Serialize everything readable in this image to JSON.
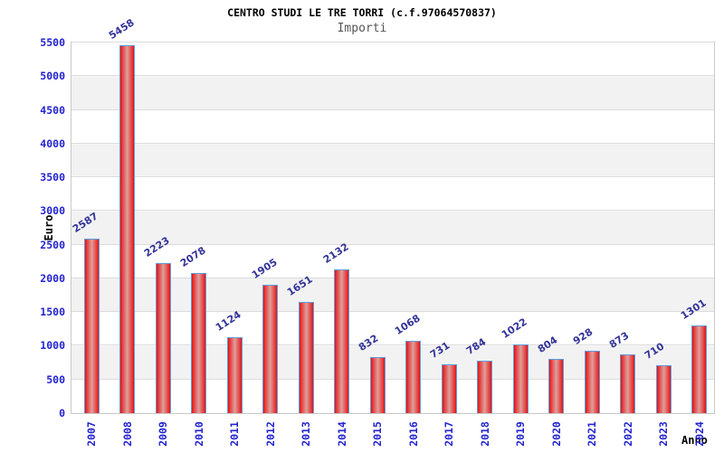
{
  "chart_data": {
    "type": "bar",
    "title": "CENTRO STUDI LE TRE TORRI (c.f.97064570837)",
    "subtitle": "Importi",
    "xlabel": "Anno",
    "ylabel": "Euro",
    "categories": [
      "2007",
      "2008",
      "2009",
      "2010",
      "2011",
      "2012",
      "2013",
      "2014",
      "2015",
      "2016",
      "2017",
      "2018",
      "2019",
      "2020",
      "2021",
      "2022",
      "2023",
      "2024"
    ],
    "values": [
      2587,
      5458,
      2223,
      2078,
      1124,
      1905,
      1651,
      2132,
      832,
      1068,
      731,
      784,
      1022,
      804,
      928,
      873,
      710,
      1301
    ],
    "value_labels": [
      "2587",
      "5458",
      "2223",
      "2078",
      "1124",
      "1905",
      "1651",
      "2132",
      "832",
      "1068",
      "731",
      "784",
      "1022",
      "804",
      "928",
      "873",
      "710",
      "1301"
    ],
    "ylim": [
      0,
      5500
    ],
    "y_ticks": [
      0,
      500,
      1000,
      1500,
      2000,
      2500,
      3000,
      3500,
      4000,
      4500,
      5000,
      5500
    ],
    "grid": "horizontal gridlines every 500 with alternating white/gray bands",
    "legend": "none",
    "colors": {
      "axis_tick_blue": "#2323d0",
      "value_label_navy": "#333399",
      "bar_border": "#5f9ddd",
      "bar_edge_red": "#dd1414",
      "bar_bright_red": "#e83030",
      "bar_center_rose": "#dda09c",
      "band_gray": "#f2f2f2",
      "gridline": "#dcdcdc",
      "plot_border": "#c9c9c9",
      "title_black": "#000000",
      "subtitle_gray": "#555555"
    }
  }
}
